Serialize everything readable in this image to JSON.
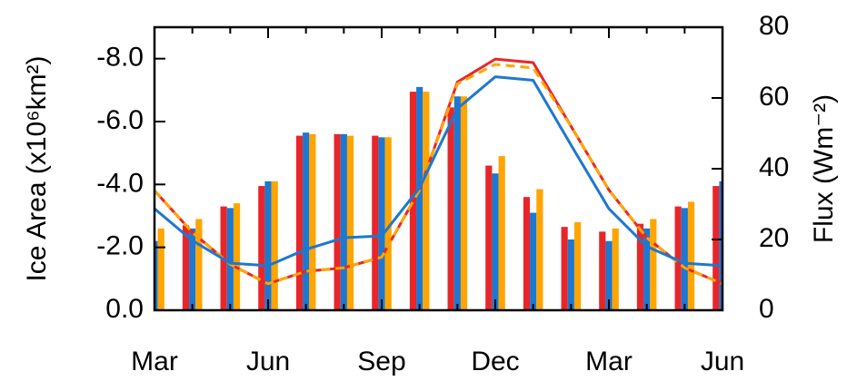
{
  "chart_data": {
    "type": "bar-line",
    "categories": [
      "Mar",
      null,
      null,
      "Jun",
      null,
      null,
      "Sep",
      null,
      null,
      "Dec",
      null,
      null,
      "Mar",
      null,
      null,
      "Jun"
    ],
    "ylabel": "Ice Area (x10⁶km²)",
    "y2label": "Flux (Wm⁻²)",
    "ylim": [
      0,
      -9
    ],
    "yticks": [
      {
        "value": 0,
        "label": "0.0"
      },
      {
        "value": -2,
        "label": "-2.0"
      },
      {
        "value": -4,
        "label": "-4.0"
      },
      {
        "value": -6,
        "label": "-6.0"
      },
      {
        "value": -8,
        "label": "-8.0"
      }
    ],
    "y2lim": [
      0,
      80
    ],
    "y2ticks": [
      0,
      20,
      40,
      60,
      80
    ],
    "bar_series": [
      {
        "color": "#e8262a",
        "values": [
          null,
          -2.7,
          -3.3,
          -3.95,
          -5.55,
          -5.6,
          -5.55,
          -6.95,
          -6.45,
          -4.6,
          -3.6,
          -2.65,
          -2.5,
          -2.75,
          -3.3,
          -3.95
        ]
      },
      {
        "color": "#1c78d0",
        "values": [
          -2.2,
          -2.6,
          -3.25,
          -4.1,
          -5.65,
          -5.6,
          -5.5,
          -7.1,
          -6.8,
          -4.35,
          -3.1,
          -2.25,
          -2.2,
          -2.6,
          -3.25,
          -4.1
        ]
      },
      {
        "color": "#ffa500",
        "values": [
          -2.6,
          -2.9,
          -3.4,
          -4.1,
          -5.6,
          -5.55,
          -5.5,
          -6.95,
          -6.8,
          -4.9,
          -3.85,
          -2.8,
          -2.6,
          -2.9,
          -3.45,
          null
        ]
      }
    ],
    "line_series": [
      {
        "color": "#e8262a",
        "axis": "y2",
        "dashed": false,
        "values": [
          33.8,
          22,
          13,
          7.5,
          11,
          12,
          15,
          34,
          64.5,
          71,
          70,
          52,
          34,
          20.5,
          12,
          7.5
        ]
      },
      {
        "color": "#ffa500",
        "axis": "y2",
        "dashed": true,
        "values": [
          33.8,
          22,
          13,
          7.5,
          11,
          12,
          15,
          34,
          64,
          69.5,
          68.5,
          52,
          34,
          20.5,
          12,
          7.5
        ]
      },
      {
        "color": "#1c78d0",
        "axis": "y2",
        "dashed": false,
        "values": [
          28.7,
          19.7,
          13.3,
          12.6,
          17.2,
          20.5,
          21,
          34.6,
          57,
          66,
          65,
          46.7,
          28.7,
          18,
          13.3,
          12.6
        ]
      }
    ]
  }
}
